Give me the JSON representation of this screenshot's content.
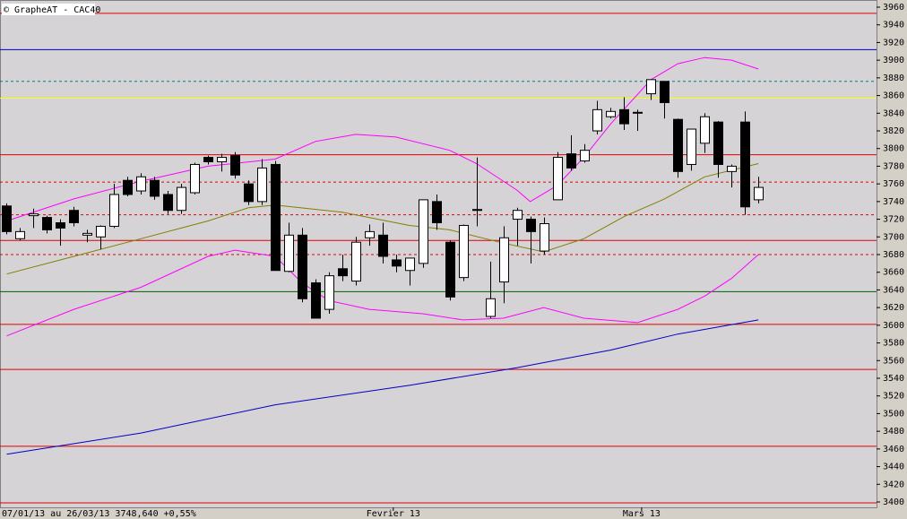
{
  "chart_data": {
    "type": "candlestick",
    "title": "© GrapheAT - CAC40",
    "footer": "07/01/13 au 26/03/13  3748,640 +0,55%",
    "x": [
      0,
      1,
      2,
      3,
      4,
      5,
      6,
      7,
      8,
      9,
      10,
      11,
      12,
      13,
      14,
      15,
      16,
      17,
      18,
      19,
      20,
      21,
      22,
      23,
      24,
      25,
      26,
      27,
      28,
      29,
      30,
      31,
      32,
      33,
      34,
      35,
      36,
      37,
      38,
      39,
      40,
      41,
      42,
      43,
      44,
      45,
      46,
      47,
      48,
      49,
      50,
      51,
      52,
      53,
      54,
      55,
      56
    ],
    "open": [
      3735,
      3698,
      3724,
      3722,
      3716,
      3730,
      3702,
      3700,
      3712,
      3764,
      3752,
      3764,
      3748,
      3730,
      3750,
      3790,
      3785,
      3792,
      3760,
      3740,
      3782,
      3661,
      3702,
      3648,
      3618,
      3664,
      3650,
      3699,
      3702,
      3674,
      3662,
      3670,
      3740,
      3694,
      3654,
      3730,
      3610,
      3649,
      3720,
      3720,
      3684,
      3742,
      3794,
      3786,
      3820,
      3836,
      3844,
      3840,
      3862,
      3876,
      3833,
      3782,
      3806,
      3830,
      3774,
      3830,
      3742
    ],
    "high": [
      3738,
      3710,
      3732,
      3724,
      3720,
      3734,
      3708,
      3713,
      3760,
      3768,
      3772,
      3768,
      3752,
      3760,
      3784,
      3792,
      3794,
      3796,
      3764,
      3788,
      3786,
      3716,
      3710,
      3652,
      3660,
      3680,
      3700,
      3714,
      3716,
      3680,
      3675,
      3742,
      3748,
      3696,
      3714,
      3790,
      3672,
      3712,
      3733,
      3723,
      3722,
      3796,
      3815,
      3805,
      3854,
      3846,
      3858,
      3844,
      3876,
      3874,
      3834,
      3822,
      3840,
      3831,
      3782,
      3842,
      3768
    ],
    "low": [
      3703,
      3696,
      3710,
      3704,
      3690,
      3712,
      3694,
      3686,
      3710,
      3746,
      3748,
      3742,
      3726,
      3726,
      3748,
      3782,
      3774,
      3766,
      3736,
      3736,
      3663,
      3660,
      3626,
      3608,
      3613,
      3650,
      3645,
      3690,
      3670,
      3660,
      3645,
      3665,
      3708,
      3628,
      3650,
      3712,
      3608,
      3625,
      3690,
      3670,
      3680,
      3742,
      3775,
      3784,
      3816,
      3834,
      3821,
      3820,
      3855,
      3834,
      3767,
      3775,
      3795,
      3767,
      3756,
      3725,
      3738
    ],
    "close": [
      3706,
      3706,
      3726,
      3708,
      3710,
      3716,
      3704,
      3712,
      3748,
      3748,
      3768,
      3746,
      3730,
      3756,
      3782,
      3785,
      3790,
      3770,
      3740,
      3778,
      3662,
      3702,
      3630,
      3608,
      3656,
      3656,
      3694,
      3706,
      3678,
      3667,
      3676,
      3742,
      3716,
      3632,
      3713,
      3731,
      3630,
      3699,
      3730,
      3706,
      3715,
      3790,
      3778,
      3798,
      3844,
      3842,
      3828,
      3841,
      3878,
      3852,
      3774,
      3822,
      3836,
      3782,
      3780,
      3734,
      3756
    ],
    "up_color": "#ffffff",
    "down_color": "#000000",
    "xlim": [
      -0.5,
      64.8
    ],
    "xticks": [
      {
        "value": 28.8,
        "label": "Fevrier 13"
      },
      {
        "value": 47.3,
        "label": "Mars 13"
      }
    ],
    "ylim": [
      3400,
      3960
    ],
    "yticks": [
      3400,
      3420,
      3440,
      3460,
      3480,
      3500,
      3520,
      3540,
      3560,
      3580,
      3600,
      3620,
      3640,
      3660,
      3680,
      3700,
      3720,
      3740,
      3760,
      3780,
      3800,
      3820,
      3840,
      3860,
      3880,
      3900,
      3920,
      3940,
      3960
    ],
    "lines": [
      {
        "color": "#0000c0",
        "x": [
          0,
          10,
          20,
          30,
          38,
          45,
          50,
          56
        ],
        "values": [
          3454,
          3478,
          3510,
          3532,
          3552,
          3572,
          3590,
          3606
        ]
      },
      {
        "color": "#808000",
        "x": [
          0,
          5,
          10,
          15,
          18,
          20,
          25,
          30,
          33,
          37,
          40,
          43,
          46,
          49,
          52,
          56
        ],
        "values": [
          3658,
          3678,
          3698,
          3718,
          3733,
          3736,
          3728,
          3713,
          3708,
          3693,
          3683,
          3698,
          3723,
          3743,
          3768,
          3783
        ]
      },
      {
        "color": "#ff00ff",
        "x": [
          0,
          5,
          10,
          15,
          20,
          23,
          26,
          29,
          33,
          35,
          38,
          39,
          41,
          43,
          45,
          48,
          50,
          52,
          54,
          56
        ],
        "values": [
          3718,
          3743,
          3763,
          3780,
          3788,
          3808,
          3816,
          3813,
          3798,
          3783,
          3753,
          3740,
          3758,
          3790,
          3828,
          3878,
          3896,
          3903,
          3900,
          3890
        ]
      },
      {
        "color": "#ff00ff",
        "x": [
          0,
          5,
          10,
          15,
          17,
          20,
          22,
          24,
          27,
          31,
          34,
          37,
          40,
          43,
          47,
          50,
          52,
          54,
          56
        ],
        "values": [
          3588,
          3618,
          3643,
          3678,
          3685,
          3678,
          3648,
          3628,
          3618,
          3613,
          3606,
          3608,
          3620,
          3608,
          3603,
          3618,
          3633,
          3653,
          3680
        ]
      }
    ],
    "levels": [
      {
        "value": 3953,
        "color": "#e00000",
        "style": "solid"
      },
      {
        "value": 3912,
        "color": "#0000c0",
        "style": "solid"
      },
      {
        "value": 3876,
        "color": "#008080",
        "style": "dashed"
      },
      {
        "value": 3857,
        "color": "#ffff00",
        "style": "solid"
      },
      {
        "value": 3793,
        "color": "#e00000",
        "style": "solid"
      },
      {
        "value": 3762,
        "color": "#e00000",
        "style": "dashed"
      },
      {
        "value": 3725,
        "color": "#e00000",
        "style": "dashed"
      },
      {
        "value": 3696,
        "color": "#e00000",
        "style": "solid"
      },
      {
        "value": 3680,
        "color": "#e00000",
        "style": "dashed"
      },
      {
        "value": 3638,
        "color": "#006000",
        "style": "solid"
      },
      {
        "value": 3601,
        "color": "#e00000",
        "style": "solid"
      },
      {
        "value": 3550,
        "color": "#e00000",
        "style": "solid"
      },
      {
        "value": 3463,
        "color": "#e00000",
        "style": "solid"
      },
      {
        "value": 3399,
        "color": "#e00000",
        "style": "solid"
      }
    ]
  }
}
